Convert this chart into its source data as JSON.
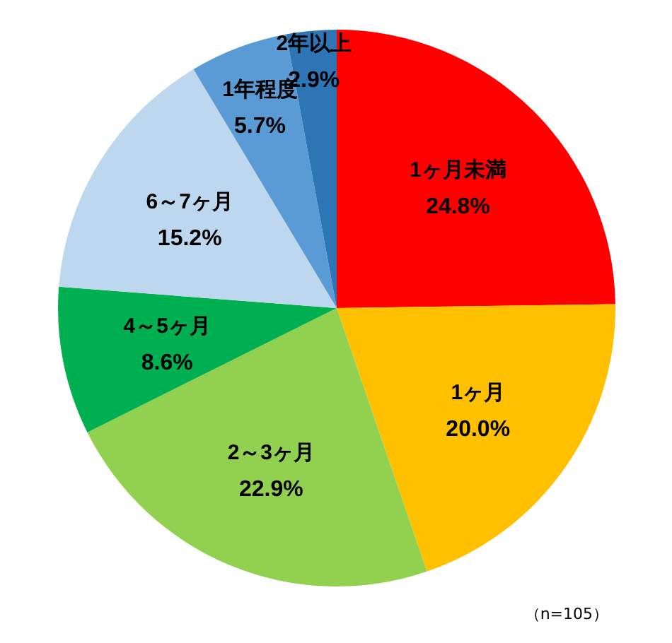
{
  "chart_data": {
    "type": "pie",
    "categories": [
      "1ヶ月未満",
      "1ヶ月",
      "2～3ヶ月",
      "4～5ヶ月",
      "6～7ヶ月",
      "1年程度",
      "2年以上"
    ],
    "values": [
      24.8,
      20.0,
      22.9,
      8.6,
      15.2,
      5.7,
      2.9
    ],
    "colors": [
      "#ff0000",
      "#ffc000",
      "#92d050",
      "#00b050",
      "#bdd7ee",
      "#5b9bd5",
      "#2e75b6"
    ],
    "value_labels": [
      "24.8%",
      "20.0%",
      "22.9%",
      "8.6%",
      "15.2%",
      "5.7%",
      "2.9%"
    ],
    "annotations": [
      "（n=105）"
    ]
  }
}
